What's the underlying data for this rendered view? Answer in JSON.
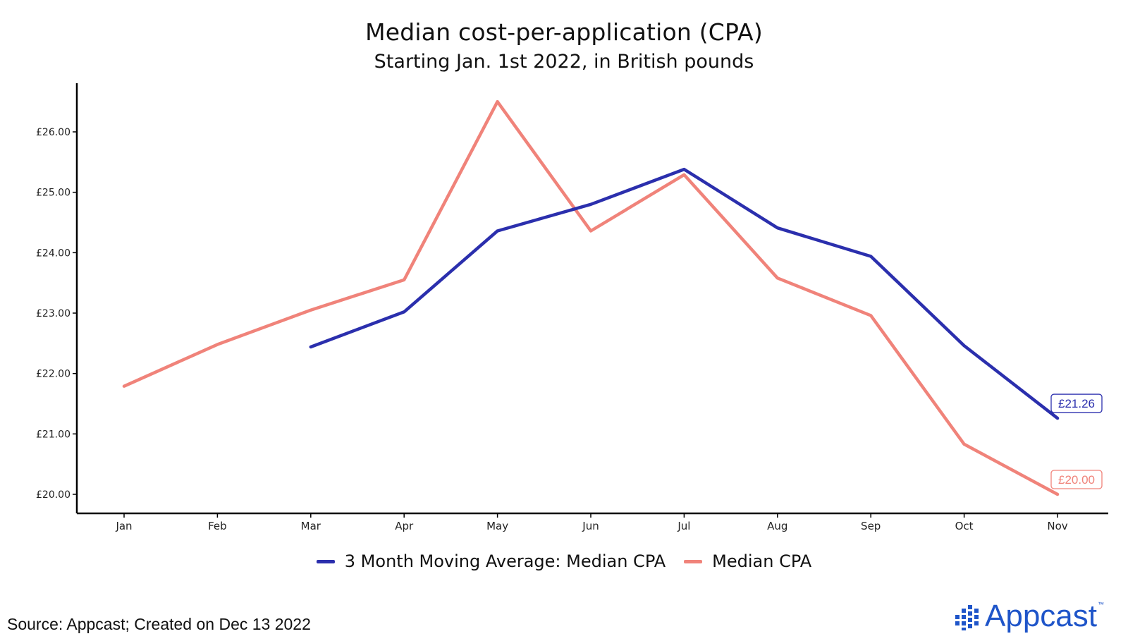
{
  "chart_data": {
    "type": "line",
    "title": "Median cost-per-application (CPA)",
    "subtitle": "Starting Jan. 1st 2022, in British pounds",
    "categories": [
      "Jan",
      "Feb",
      "Mar",
      "Apr",
      "May",
      "Jun",
      "Jul",
      "Aug",
      "Sep",
      "Oct",
      "Nov"
    ],
    "ylim": [
      19.7,
      26.8
    ],
    "yticks": [
      20,
      21,
      22,
      23,
      24,
      25,
      26
    ],
    "ytick_labels": [
      "£20.00",
      "£21.00",
      "£22.00",
      "£23.00",
      "£24.00",
      "£25.00",
      "£26.00"
    ],
    "xlabel": "",
    "ylabel": "",
    "grid": false,
    "legend_position": "bottom",
    "series": [
      {
        "name": "3 Month Moving Average: Median CPA",
        "color": "#2b2fad",
        "values": [
          null,
          null,
          22.44,
          23.02,
          24.36,
          24.8,
          25.38,
          24.41,
          23.94,
          22.46,
          21.26
        ],
        "end_label": "£21.26"
      },
      {
        "name": "Median CPA",
        "color": "#f0837a",
        "values": [
          21.79,
          22.48,
          23.05,
          23.55,
          26.5,
          24.36,
          25.29,
          23.58,
          22.96,
          20.83,
          20.0
        ],
        "end_label": "£20.00"
      }
    ]
  },
  "source_text": "Source: Appcast; Created on Dec 13 2022",
  "logo": {
    "text": "Appcast",
    "tm": "™",
    "color": "#1f55c9"
  }
}
